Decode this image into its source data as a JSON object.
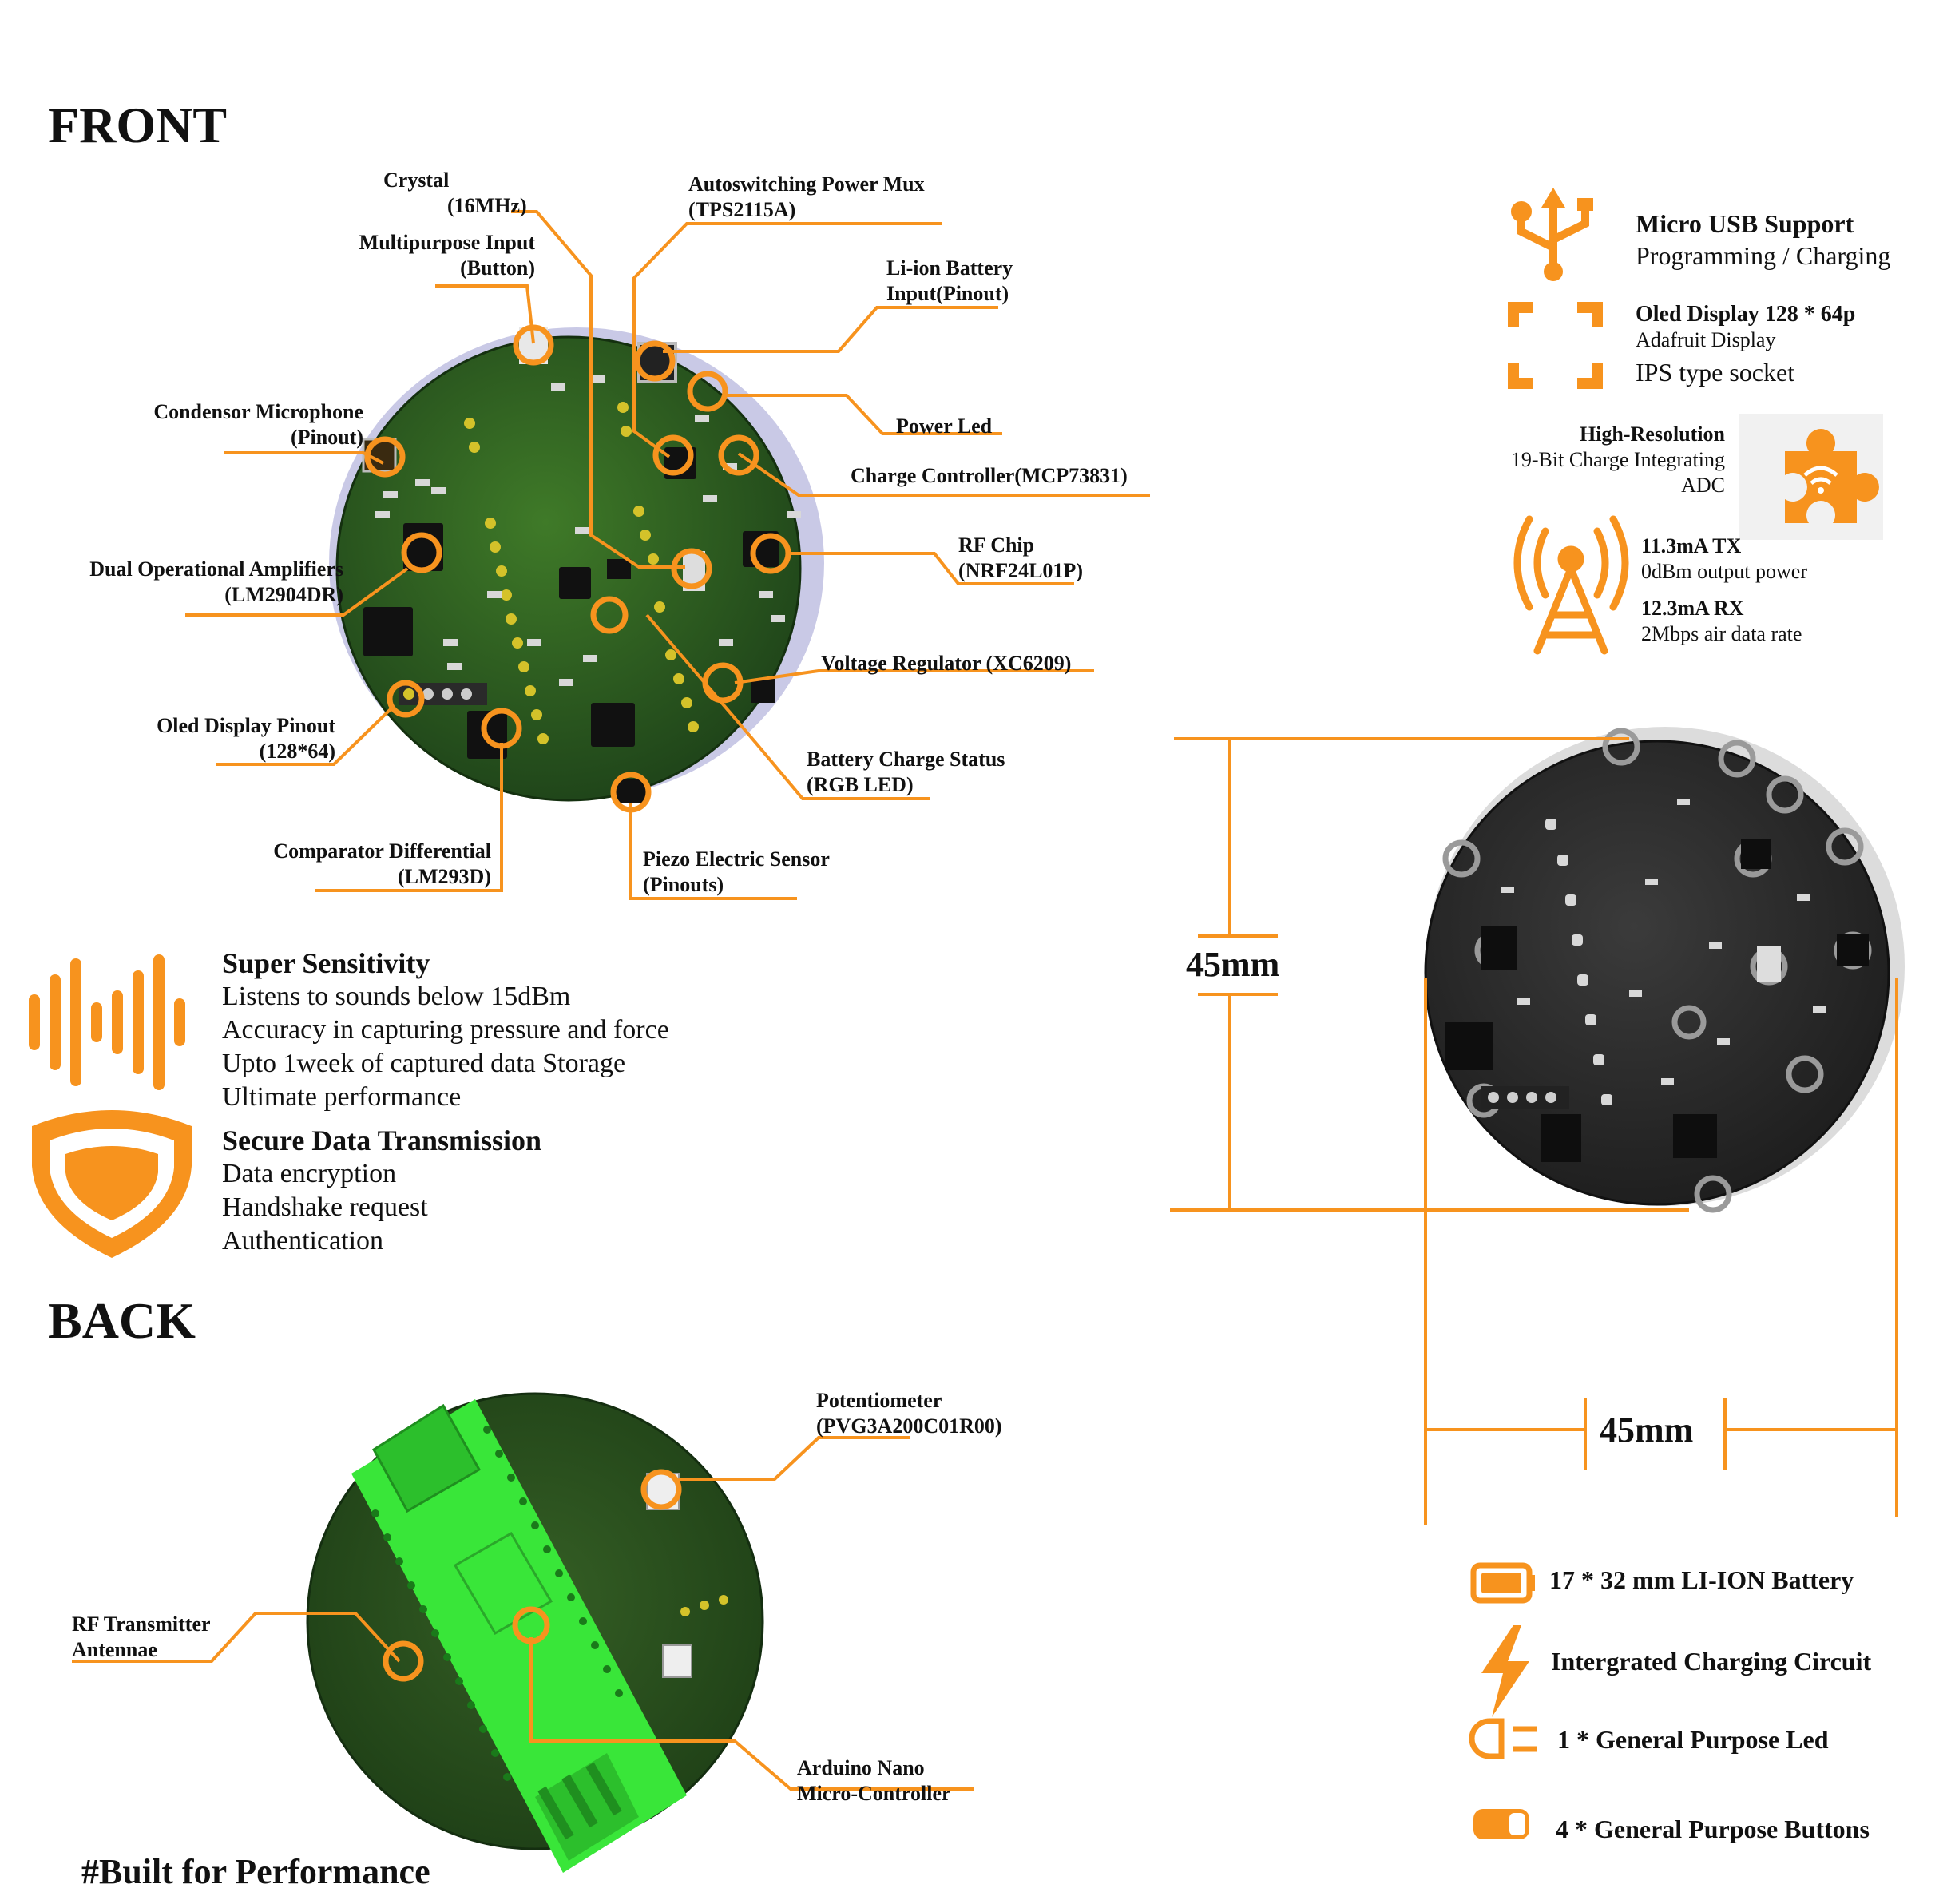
{
  "headings": {
    "front": "FRONT",
    "back": "BACK"
  },
  "front_callouts": {
    "crystal": [
      "Crystal",
      "(16MHz)"
    ],
    "multipurpose_input": [
      "Multipurpose Input",
      "(Button)"
    ],
    "power_mux": [
      "Autoswitching Power Mux",
      "(TPS2115A)"
    ],
    "battery_input": [
      "Li-ion Battery",
      "Input(Pinout)"
    ],
    "microphone": [
      "Condensor Microphone",
      "(Pinout)"
    ],
    "power_led": [
      "Power Led"
    ],
    "charge_controller": [
      "Charge Controller(MCP73831)"
    ],
    "op_amps": [
      "Dual Operational Amplifiers",
      "(LM2904DR)"
    ],
    "rf_chip": [
      "RF Chip",
      "(NRF24L01P)"
    ],
    "voltage_regulator": [
      "Voltage Regulator (XC6209)"
    ],
    "oled_pinout": [
      "Oled Display Pinout",
      "(128*64)"
    ],
    "charge_status": [
      "Battery Charge Status",
      "(RGB LED)"
    ],
    "comparator": [
      "Comparator Differential",
      "(LM293D)"
    ],
    "piezo": [
      "Piezo Electric Sensor",
      "(Pinouts)"
    ]
  },
  "back_callouts": {
    "potentiometer": [
      "Potentiometer",
      "(PVG3A200C01R00)"
    ],
    "rf_antenna": [
      "RF Transmitter",
      "Antennae"
    ],
    "arduino": [
      "Arduino Nano",
      "Micro-Controller"
    ]
  },
  "feature_blocks": {
    "sensitivity": {
      "title": "Super Sensitivity",
      "lines": [
        "Listens to sounds below 15dBm",
        "Accuracy in capturing pressure and force",
        "Upto 1week of captured data Storage",
        "Ultimate performance"
      ],
      "icon": "sound-wave-icon"
    },
    "security": {
      "title": "Secure Data Transmission",
      "lines": [
        "Data encryption",
        "Handshake request",
        "Authentication"
      ],
      "icon": "shield-icon"
    }
  },
  "specs": {
    "usb": {
      "title": "Micro USB Support",
      "line": "Programming / Charging",
      "icon": "usb-icon"
    },
    "oled": {
      "title": "Oled Display 128 * 64p",
      "line1": "Adafruit Display",
      "line2": "IPS type socket",
      "icon": "display-frame-icon"
    },
    "adc": {
      "title": "High-Resolution",
      "line1": "19-Bit Charge Integrating",
      "line2": "ADC",
      "icon": "puzzle-wifi-icon"
    },
    "rf": {
      "tx_title": "11.3mA TX",
      "tx_line": "0dBm output power",
      "rx_title": "12.3mA RX",
      "rx_line": "2Mbps air data rate",
      "icon": "radio-tower-icon"
    }
  },
  "dimensions": {
    "height": "45mm",
    "width": "45mm"
  },
  "bottom_features": [
    {
      "label": "17 * 32 mm LI-ION Battery",
      "icon": "battery-icon"
    },
    {
      "label": "Intergrated Charging Circuit",
      "icon": "lightning-icon"
    },
    {
      "label": "1 * General Purpose Led",
      "icon": "led-icon"
    },
    {
      "label": "4 * General Purpose Buttons",
      "icon": "toggle-button-icon"
    }
  ],
  "tagline": "#Built for Performance",
  "colors": {
    "accent": "#F7931E",
    "pcb_green": "#2F5E1E",
    "nano_green": "#39E639",
    "pcb_dark": "#2A2A2A"
  }
}
